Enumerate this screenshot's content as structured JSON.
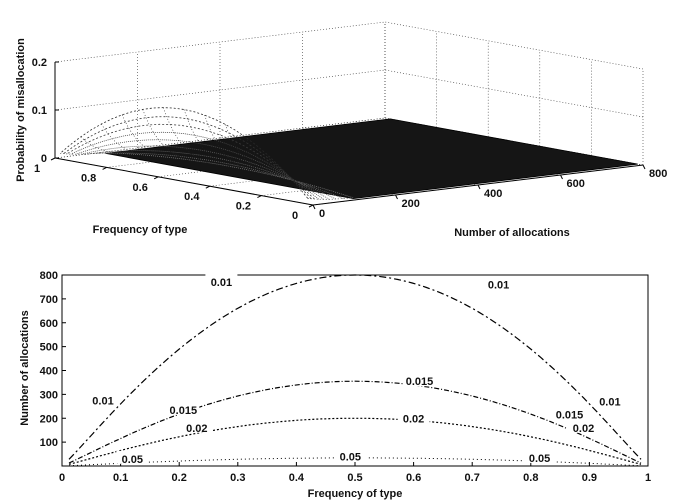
{
  "chart_data": [
    {
      "type": "surface",
      "xlabel": "Number of allocations",
      "ylabel": "Frequency of type",
      "zlabel": "Probability of misallocation",
      "xlim": [
        0,
        800
      ],
      "ylim": [
        0,
        1
      ],
      "zlim": [
        0,
        0.2
      ],
      "xticks": [
        "0",
        "200",
        "400",
        "600",
        "800"
      ],
      "yticks": [
        "0",
        "0.2",
        "0.4",
        "0.6",
        "0.8",
        "1"
      ],
      "zticks": [
        "0",
        "0.1",
        "0.2"
      ],
      "grid": true,
      "surface_peak": {
        "frequency": 0.5,
        "allocations": 0,
        "probability": 0.15
      }
    },
    {
      "type": "contour",
      "xlabel": "Frequency of type",
      "ylabel": "Number of allocations",
      "xlim": [
        0,
        1
      ],
      "ylim": [
        0,
        800
      ],
      "xticks": [
        "0",
        "0.1",
        "0.2",
        "0.3",
        "0.4",
        "0.5",
        "0.6",
        "0.7",
        "0.8",
        "0.9",
        "1"
      ],
      "yticks": [
        "100",
        "200",
        "300",
        "400",
        "500",
        "600",
        "700",
        "800"
      ],
      "series": [
        {
          "name": "0.01",
          "peak_allocations": 800
        },
        {
          "name": "0.015",
          "peak_allocations": 355
        },
        {
          "name": "0.02",
          "peak_allocations": 200
        },
        {
          "name": "0.05",
          "peak_allocations": 34
        }
      ],
      "contour_labels": [
        {
          "text": "0.01",
          "x": 0.272,
          "y": 770
        },
        {
          "text": "0.01",
          "x": 0.745,
          "y": 760
        },
        {
          "text": "0.01",
          "x": 0.07,
          "y": 275
        },
        {
          "text": "0.01",
          "x": 0.935,
          "y": 270
        },
        {
          "text": "0.015",
          "x": 0.207,
          "y": 235
        },
        {
          "text": "0.015",
          "x": 0.61,
          "y": 355
        },
        {
          "text": "0.015",
          "x": 0.866,
          "y": 215
        },
        {
          "text": "0.02",
          "x": 0.23,
          "y": 160
        },
        {
          "text": "0.02",
          "x": 0.6,
          "y": 200
        },
        {
          "text": "0.02",
          "x": 0.89,
          "y": 160
        },
        {
          "text": "0.05",
          "x": 0.12,
          "y": 30
        },
        {
          "text": "0.05",
          "x": 0.492,
          "y": 40
        },
        {
          "text": "0.05",
          "x": 0.815,
          "y": 34
        }
      ]
    }
  ]
}
